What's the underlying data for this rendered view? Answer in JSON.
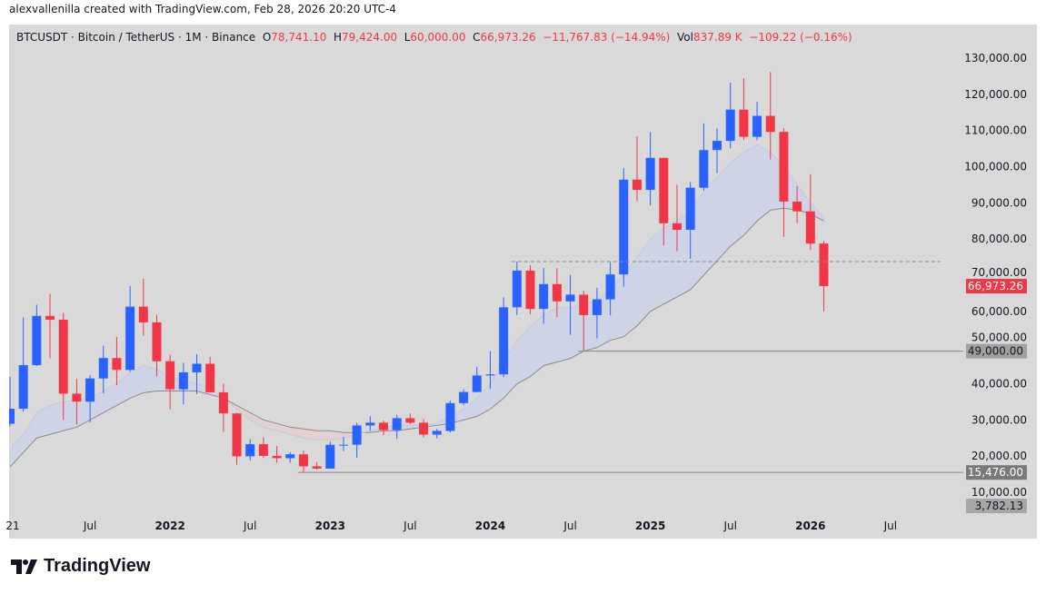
{
  "credit": "alexvallenilla created with TradingView.com, Feb 28, 2026 20:20 UTC-4",
  "legend": {
    "symbol": "BTCUSDT · Bitcoin / TetherUS · 1M · Binance",
    "o_label": "O",
    "o": "78,741.10",
    "h_label": "H",
    "h": "79,424.00",
    "l_label": "L",
    "l": "60,000.00",
    "c_label": "C",
    "c": "66,973.26",
    "change": "−11,767.83 (−14.94%)",
    "vol_label": "Vol",
    "vol": "837.89 K",
    "vol_change": "−109.22 (−0.16%)"
  },
  "logo": "TradingView",
  "colors": {
    "up": "#2962ff",
    "down": "#f23645",
    "band_up": "#ccd3e6",
    "band_down": "#e3cfd0",
    "slow_line": "#8a8a8a"
  },
  "chart_data": {
    "type": "candlestick",
    "interval": "1M",
    "ylim": [
      0,
      130000
    ],
    "grid": false,
    "y_ticks": [
      "10,000.00",
      "20,000.00",
      "30,000.00",
      "40,000.00",
      "50,000.00",
      "60,000.00",
      "70,000.00",
      "80,000.00",
      "90,000.00",
      "100,000.00",
      "110,000.00",
      "120,000.00",
      "130,000.00"
    ],
    "y_tick_values": [
      10000,
      20000,
      30000,
      40000,
      50000,
      60000,
      70000,
      80000,
      90000,
      100000,
      110000,
      120000,
      130000
    ],
    "x_ticks": [
      {
        "label": "21",
        "month": 0
      },
      {
        "label": "Jul",
        "month": 6
      },
      {
        "label": "2022",
        "month": 12
      },
      {
        "label": "Jul",
        "month": 18
      },
      {
        "label": "2023",
        "month": 24
      },
      {
        "label": "Jul",
        "month": 30
      },
      {
        "label": "2024",
        "month": 36
      },
      {
        "label": "Jul",
        "month": 42
      },
      {
        "label": "2025",
        "month": 48
      },
      {
        "label": "Jul",
        "month": 54
      },
      {
        "label": "2026",
        "month": 60
      },
      {
        "label": "Jul",
        "month": 66
      }
    ],
    "start_month": "2021-01",
    "ohlc": [
      [
        28923,
        41950,
        28130,
        33092
      ],
      [
        33092,
        58352,
        32296,
        45135
      ],
      [
        45134,
        61844,
        44950,
        58741
      ],
      [
        58739,
        64854,
        47044,
        57694
      ],
      [
        57697,
        59592,
        30000,
        37253
      ],
      [
        37253,
        41330,
        28805,
        35045
      ],
      [
        35045,
        42448,
        29278,
        41461
      ],
      [
        41461,
        50500,
        37332,
        47100
      ],
      [
        47100,
        52920,
        39600,
        43824
      ],
      [
        43820,
        67000,
        43283,
        61299
      ],
      [
        61300,
        69000,
        53256,
        56950
      ],
      [
        56950,
        59053,
        42000,
        46216
      ],
      [
        46216,
        47990,
        32917,
        38466
      ],
      [
        38466,
        45821,
        34322,
        43160
      ],
      [
        43160,
        48190,
        37155,
        45510
      ],
      [
        45510,
        47444,
        37578,
        37630
      ],
      [
        37630,
        40023,
        26700,
        31801
      ],
      [
        31801,
        31986,
        17622,
        19942
      ],
      [
        19942,
        24668,
        18782,
        23293
      ],
      [
        23297,
        25212,
        19520,
        20050
      ],
      [
        20050,
        22799,
        18125,
        19423
      ],
      [
        19423,
        21085,
        18190,
        20490
      ],
      [
        20490,
        21480,
        15476,
        17164
      ],
      [
        17165,
        18387,
        16256,
        16542
      ],
      [
        16541,
        23960,
        16499,
        23125
      ],
      [
        23125,
        25250,
        21351,
        23141
      ],
      [
        23141,
        29184,
        19549,
        28465
      ],
      [
        28465,
        31000,
        26942,
        29233
      ],
      [
        29233,
        29820,
        25811,
        27210
      ],
      [
        27210,
        31431,
        24800,
        30472
      ],
      [
        30472,
        31804,
        28861,
        29232
      ],
      [
        29232,
        30244,
        25166,
        25940
      ],
      [
        25940,
        27483,
        24901,
        26962
      ],
      [
        26962,
        35280,
        26538,
        34639
      ],
      [
        34639,
        38450,
        34097,
        37723
      ],
      [
        37723,
        44700,
        37615,
        42283
      ],
      [
        42283,
        48969,
        38555,
        42582
      ],
      [
        42582,
        63913,
        41884,
        61130
      ],
      [
        61130,
        73777,
        59005,
        71280
      ],
      [
        71280,
        72797,
        59191,
        60672
      ],
      [
        60672,
        71979,
        56552,
        67540
      ],
      [
        67540,
        71950,
        58402,
        62772
      ],
      [
        62772,
        70080,
        53485,
        64628
      ],
      [
        64628,
        65659,
        49000,
        58974
      ],
      [
        58974,
        66498,
        52550,
        63327
      ],
      [
        63327,
        73620,
        58946,
        70215
      ],
      [
        70215,
        99588,
        66835,
        96407
      ],
      [
        96407,
        108353,
        90500,
        93576
      ],
      [
        93576,
        109588,
        89256,
        102429
      ],
      [
        102429,
        102500,
        78258,
        84350
      ],
      [
        84350,
        95000,
        76606,
        82550
      ],
      [
        82550,
        95758,
        74508,
        94172
      ],
      [
        94172,
        111980,
        93377,
        104591
      ],
      [
        104591,
        110530,
        98200,
        107135
      ],
      [
        107135,
        123218,
        105100,
        115764
      ],
      [
        115764,
        124474,
        107350,
        108246
      ],
      [
        108246,
        117900,
        107255,
        114049
      ],
      [
        114049,
        126199,
        102000,
        109608
      ],
      [
        109608,
        110600,
        80600,
        90360
      ],
      [
        90360,
        94600,
        84400,
        87650
      ],
      [
        87650,
        97900,
        77000,
        78741
      ],
      [
        78741,
        79424,
        60000,
        66973.26
      ]
    ],
    "ma_fast": [
      22,
      26,
      32,
      34,
      35,
      35.5,
      36,
      38,
      40,
      43,
      45,
      44,
      42,
      41,
      40,
      39,
      36,
      33,
      30,
      28,
      27,
      26,
      25,
      24.5,
      24.5,
      25,
      26,
      27,
      28,
      28.5,
      28.5,
      28.5,
      29,
      31,
      33,
      36,
      40,
      46,
      52,
      56,
      59,
      61,
      61,
      62,
      63,
      66,
      70,
      75,
      80,
      83,
      85,
      88,
      93,
      97,
      101,
      104,
      106,
      104,
      100,
      95,
      90,
      86
    ],
    "ma_slow": [
      17,
      21,
      25,
      26,
      27,
      28,
      30,
      32,
      34,
      36,
      37.5,
      38,
      38,
      38,
      38,
      37,
      36,
      34,
      32,
      30,
      29,
      28,
      27.5,
      27,
      27,
      26.5,
      26.5,
      26.5,
      27,
      27,
      27.5,
      28,
      28.5,
      29,
      30,
      31,
      33,
      36,
      40,
      42,
      45,
      46,
      47,
      49,
      50,
      52,
      53,
      56,
      60,
      62,
      64,
      66,
      70,
      74,
      78,
      81,
      85,
      88,
      88.5,
      88,
      87,
      85
    ],
    "ma_unit": "thousands",
    "levels": [
      {
        "value": 73777,
        "style": "dashed",
        "from_month": 38
      },
      {
        "value": 49000,
        "label": "49,000.00",
        "from_month": 43
      },
      {
        "value": 15476,
        "label": "15,476.00",
        "from_month": 22
      }
    ],
    "last_price_label": "66,973.26",
    "extra_label": "3,782.13"
  }
}
